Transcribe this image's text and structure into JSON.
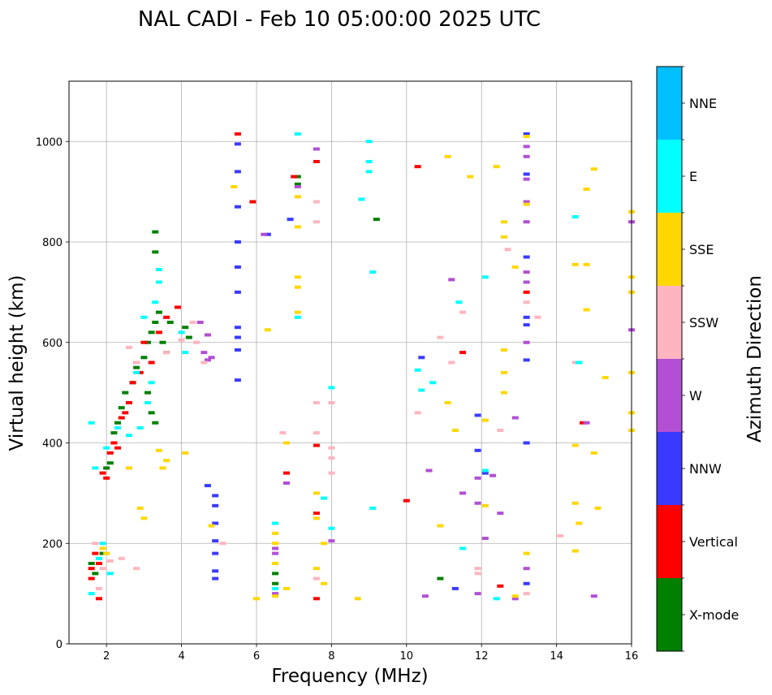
{
  "chart_data": {
    "type": "scatter",
    "title": "NAL CADI - Feb 10 05:00:00 2025 UTC",
    "xlabel": "Frequency (MHz)",
    "ylabel": "Virtual height (km)",
    "xlim": [
      1,
      16
    ],
    "ylim": [
      0,
      1120
    ],
    "xticks": [
      2,
      4,
      6,
      8,
      10,
      12,
      14,
      16
    ],
    "yticks": [
      0,
      200,
      400,
      600,
      800,
      1000
    ],
    "grid": true,
    "colorbar": {
      "label": "Azimuth Direction",
      "categories": [
        "X-mode",
        "Vertical",
        "NNW",
        "W",
        "SSW",
        "SSE",
        "E",
        "NNE"
      ],
      "colors": [
        "#008000",
        "#ff0000",
        "#3a3aff",
        "#b24fd4",
        "#ffb5c0",
        "#ffd700",
        "#00ffff",
        "#00bfff"
      ]
    },
    "series": [
      {
        "name": "X-mode",
        "points": [
          [
            1.6,
            160
          ],
          [
            1.7,
            140
          ],
          [
            1.9,
            180
          ],
          [
            2.0,
            350
          ],
          [
            2.1,
            360
          ],
          [
            2.2,
            420
          ],
          [
            2.3,
            440
          ],
          [
            2.4,
            470
          ],
          [
            2.5,
            500
          ],
          [
            2.7,
            520
          ],
          [
            2.8,
            550
          ],
          [
            3.0,
            570
          ],
          [
            3.1,
            600
          ],
          [
            3.2,
            620
          ],
          [
            3.3,
            640
          ],
          [
            3.4,
            660
          ],
          [
            3.1,
            500
          ],
          [
            3.2,
            460
          ],
          [
            3.3,
            440
          ],
          [
            3.3,
            780
          ],
          [
            3.3,
            820
          ],
          [
            3.5,
            600
          ],
          [
            3.6,
            580
          ],
          [
            3.7,
            640
          ],
          [
            4.1,
            630
          ],
          [
            4.2,
            610
          ],
          [
            7.1,
            930
          ],
          [
            7.1,
            915
          ],
          [
            9.2,
            845
          ],
          [
            10.9,
            130
          ],
          [
            6.5,
            120
          ],
          [
            6.5,
            140
          ]
        ]
      },
      {
        "name": "Vertical",
        "points": [
          [
            1.6,
            130
          ],
          [
            1.6,
            150
          ],
          [
            1.7,
            180
          ],
          [
            1.8,
            160
          ],
          [
            1.8,
            90
          ],
          [
            1.9,
            340
          ],
          [
            2.0,
            330
          ],
          [
            2.1,
            380
          ],
          [
            2.2,
            400
          ],
          [
            2.3,
            390
          ],
          [
            2.4,
            450
          ],
          [
            2.5,
            460
          ],
          [
            2.6,
            480
          ],
          [
            2.7,
            520
          ],
          [
            2.8,
            560
          ],
          [
            2.9,
            540
          ],
          [
            3.0,
            600
          ],
          [
            3.2,
            560
          ],
          [
            3.4,
            620
          ],
          [
            3.6,
            650
          ],
          [
            3.9,
            670
          ],
          [
            5.5,
            1015
          ],
          [
            5.9,
            880
          ],
          [
            6.8,
            340
          ],
          [
            7.0,
            930
          ],
          [
            7.6,
            960
          ],
          [
            7.6,
            395
          ],
          [
            7.6,
            260
          ],
          [
            7.6,
            90
          ],
          [
            10.0,
            285
          ],
          [
            10.3,
            950
          ],
          [
            11.5,
            580
          ],
          [
            12.5,
            115
          ],
          [
            13.2,
            700
          ],
          [
            14.7,
            440
          ]
        ]
      },
      {
        "name": "NNW",
        "points": [
          [
            5.5,
            995
          ],
          [
            5.5,
            940
          ],
          [
            5.5,
            870
          ],
          [
            5.5,
            800
          ],
          [
            5.5,
            750
          ],
          [
            5.5,
            700
          ],
          [
            5.5,
            630
          ],
          [
            5.5,
            610
          ],
          [
            5.5,
            585
          ],
          [
            5.5,
            525
          ],
          [
            4.9,
            295
          ],
          [
            4.9,
            275
          ],
          [
            4.9,
            240
          ],
          [
            4.9,
            205
          ],
          [
            4.9,
            180
          ],
          [
            4.9,
            145
          ],
          [
            4.9,
            130
          ],
          [
            4.7,
            315
          ],
          [
            6.3,
            815
          ],
          [
            6.9,
            845
          ],
          [
            10.4,
            570
          ],
          [
            11.9,
            455
          ],
          [
            11.9,
            385
          ],
          [
            12.1,
            340
          ],
          [
            13.2,
            1015
          ],
          [
            13.2,
            935
          ],
          [
            13.2,
            770
          ],
          [
            13.2,
            650
          ],
          [
            13.2,
            635
          ],
          [
            13.2,
            565
          ],
          [
            13.2,
            400
          ],
          [
            13.2,
            120
          ],
          [
            11.3,
            110
          ]
        ]
      },
      {
        "name": "W",
        "points": [
          [
            4.8,
            570
          ],
          [
            4.7,
            565
          ],
          [
            4.5,
            640
          ],
          [
            4.6,
            580
          ],
          [
            4.7,
            615
          ],
          [
            6.2,
            815
          ],
          [
            6.5,
            190
          ],
          [
            6.5,
            180
          ],
          [
            6.5,
            100
          ],
          [
            6.8,
            320
          ],
          [
            7.1,
            910
          ],
          [
            7.6,
            985
          ],
          [
            8.0,
            205
          ],
          [
            10.5,
            95
          ],
          [
            10.6,
            345
          ],
          [
            11.2,
            725
          ],
          [
            11.5,
            300
          ],
          [
            11.9,
            330
          ],
          [
            11.9,
            280
          ],
          [
            11.9,
            100
          ],
          [
            12.1,
            210
          ],
          [
            12.3,
            335
          ],
          [
            12.5,
            260
          ],
          [
            12.9,
            450
          ],
          [
            13.2,
            990
          ],
          [
            13.2,
            970
          ],
          [
            13.2,
            925
          ],
          [
            13.2,
            880
          ],
          [
            13.2,
            840
          ],
          [
            13.2,
            740
          ],
          [
            13.2,
            720
          ],
          [
            13.2,
            600
          ],
          [
            13.2,
            150
          ],
          [
            12.9,
            90
          ],
          [
            14.8,
            440
          ],
          [
            15.0,
            95
          ],
          [
            16.0,
            840
          ],
          [
            16.0,
            625
          ]
        ]
      },
      {
        "name": "SSW",
        "points": [
          [
            1.7,
            200
          ],
          [
            1.8,
            110
          ],
          [
            1.9,
            150
          ],
          [
            2.1,
            165
          ],
          [
            2.4,
            170
          ],
          [
            2.8,
            150
          ],
          [
            2.6,
            590
          ],
          [
            2.8,
            560
          ],
          [
            3.6,
            580
          ],
          [
            4.0,
            605
          ],
          [
            4.3,
            640
          ],
          [
            4.4,
            600
          ],
          [
            4.6,
            560
          ],
          [
            5.1,
            200
          ],
          [
            6.7,
            420
          ],
          [
            7.6,
            880
          ],
          [
            7.6,
            840
          ],
          [
            7.6,
            480
          ],
          [
            7.6,
            420
          ],
          [
            7.6,
            130
          ],
          [
            8.0,
            390
          ],
          [
            8.0,
            370
          ],
          [
            8.0,
            340
          ],
          [
            8.0,
            480
          ],
          [
            10.3,
            460
          ],
          [
            10.9,
            610
          ],
          [
            11.2,
            560
          ],
          [
            11.5,
            660
          ],
          [
            11.9,
            150
          ],
          [
            11.9,
            140
          ],
          [
            12.7,
            785
          ],
          [
            12.5,
            425
          ],
          [
            13.2,
            680
          ],
          [
            13.5,
            650
          ],
          [
            13.2,
            100
          ],
          [
            14.1,
            215
          ],
          [
            14.5,
            560
          ]
        ]
      },
      {
        "name": "SSE",
        "points": [
          [
            1.9,
            190
          ],
          [
            2.0,
            180
          ],
          [
            2.6,
            350
          ],
          [
            2.9,
            270
          ],
          [
            3.0,
            250
          ],
          [
            3.5,
            350
          ],
          [
            3.6,
            365
          ],
          [
            3.4,
            385
          ],
          [
            4.1,
            380
          ],
          [
            4.8,
            235
          ],
          [
            5.4,
            910
          ],
          [
            6.3,
            625
          ],
          [
            6.0,
            90
          ],
          [
            6.5,
            220
          ],
          [
            6.5,
            200
          ],
          [
            6.5,
            160
          ],
          [
            6.5,
            95
          ],
          [
            6.8,
            400
          ],
          [
            6.8,
            110
          ],
          [
            7.1,
            890
          ],
          [
            7.1,
            830
          ],
          [
            7.1,
            730
          ],
          [
            7.1,
            710
          ],
          [
            7.1,
            660
          ],
          [
            7.6,
            300
          ],
          [
            7.6,
            250
          ],
          [
            7.6,
            150
          ],
          [
            7.8,
            200
          ],
          [
            7.8,
            120
          ],
          [
            8.7,
            90
          ],
          [
            10.9,
            235
          ],
          [
            11.1,
            970
          ],
          [
            11.1,
            480
          ],
          [
            11.3,
            425
          ],
          [
            11.7,
            930
          ],
          [
            12.1,
            445
          ],
          [
            12.1,
            275
          ],
          [
            12.4,
            950
          ],
          [
            12.6,
            840
          ],
          [
            12.6,
            810
          ],
          [
            12.6,
            585
          ],
          [
            12.6,
            540
          ],
          [
            12.6,
            500
          ],
          [
            12.9,
            750
          ],
          [
            13.2,
            1010
          ],
          [
            13.2,
            875
          ],
          [
            13.2,
            180
          ],
          [
            14.5,
            755
          ],
          [
            14.5,
            395
          ],
          [
            14.5,
            280
          ],
          [
            14.6,
            240
          ],
          [
            14.5,
            185
          ],
          [
            14.8,
            905
          ],
          [
            14.8,
            755
          ],
          [
            14.8,
            665
          ],
          [
            15.0,
            945
          ],
          [
            15.0,
            380
          ],
          [
            15.1,
            270
          ],
          [
            15.3,
            530
          ],
          [
            16.0,
            860
          ],
          [
            16.0,
            730
          ],
          [
            16.0,
            700
          ],
          [
            16.0,
            540
          ],
          [
            16.0,
            460
          ],
          [
            16.0,
            425
          ],
          [
            12.9,
            95
          ]
        ]
      },
      {
        "name": "E",
        "points": [
          [
            1.6,
            440
          ],
          [
            1.6,
            100
          ],
          [
            1.7,
            350
          ],
          [
            1.8,
            170
          ],
          [
            1.9,
            200
          ],
          [
            2.1,
            140
          ],
          [
            2.0,
            390
          ],
          [
            2.3,
            430
          ],
          [
            2.6,
            415
          ],
          [
            2.8,
            540
          ],
          [
            2.9,
            430
          ],
          [
            3.0,
            650
          ],
          [
            3.1,
            480
          ],
          [
            3.2,
            520
          ],
          [
            3.3,
            680
          ],
          [
            3.4,
            745
          ],
          [
            3.4,
            720
          ],
          [
            4.0,
            620
          ],
          [
            4.1,
            580
          ],
          [
            6.5,
            240
          ],
          [
            6.5,
            110
          ],
          [
            7.1,
            1015
          ],
          [
            7.1,
            650
          ],
          [
            7.8,
            290
          ],
          [
            8.0,
            510
          ],
          [
            8.0,
            230
          ],
          [
            8.8,
            885
          ],
          [
            9.0,
            1000
          ],
          [
            9.0,
            960
          ],
          [
            9.0,
            940
          ],
          [
            9.1,
            740
          ],
          [
            9.1,
            270
          ],
          [
            10.3,
            545
          ],
          [
            10.4,
            505
          ],
          [
            10.7,
            520
          ],
          [
            11.4,
            680
          ],
          [
            11.5,
            190
          ],
          [
            12.1,
            345
          ],
          [
            12.1,
            730
          ],
          [
            12.4,
            90
          ],
          [
            14.6,
            560
          ],
          [
            14.5,
            850
          ]
        ]
      },
      {
        "name": "NNE",
        "points": []
      }
    ]
  }
}
